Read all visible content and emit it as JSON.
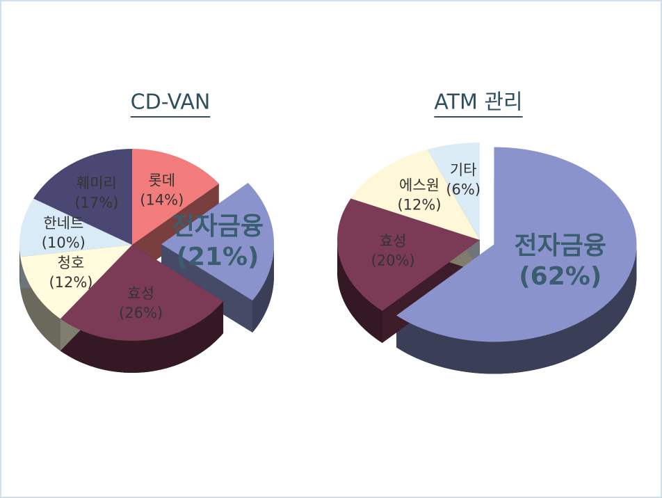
{
  "chart_data": [
    {
      "type": "pie",
      "title": "CD-VAN",
      "categories": [
        "훼미리",
        "롯데",
        "전자금융",
        "효성",
        "청호",
        "한네트"
      ],
      "values": [
        17,
        14,
        21,
        26,
        12,
        10
      ],
      "value_labels": [
        "(17%)",
        "(14%)",
        "(21%)",
        "(26%)",
        "(12%)",
        "(10%)"
      ],
      "colors": [
        "#4a4772",
        "#f27c7c",
        "#8a93cc",
        "#7b3a56",
        "#fffbdc",
        "#d9ebf6"
      ]
    },
    {
      "type": "pie",
      "title": "ATM 관리",
      "categories": [
        "전자금융",
        "효성",
        "에스원",
        "기타"
      ],
      "values": [
        62,
        20,
        12,
        6
      ],
      "value_labels": [
        "(62%)",
        "(20%)",
        "(12%)",
        "(6%)"
      ],
      "colors": [
        "#8a93cc",
        "#7b3a56",
        "#fff8d8",
        "#dcecf7"
      ]
    }
  ]
}
